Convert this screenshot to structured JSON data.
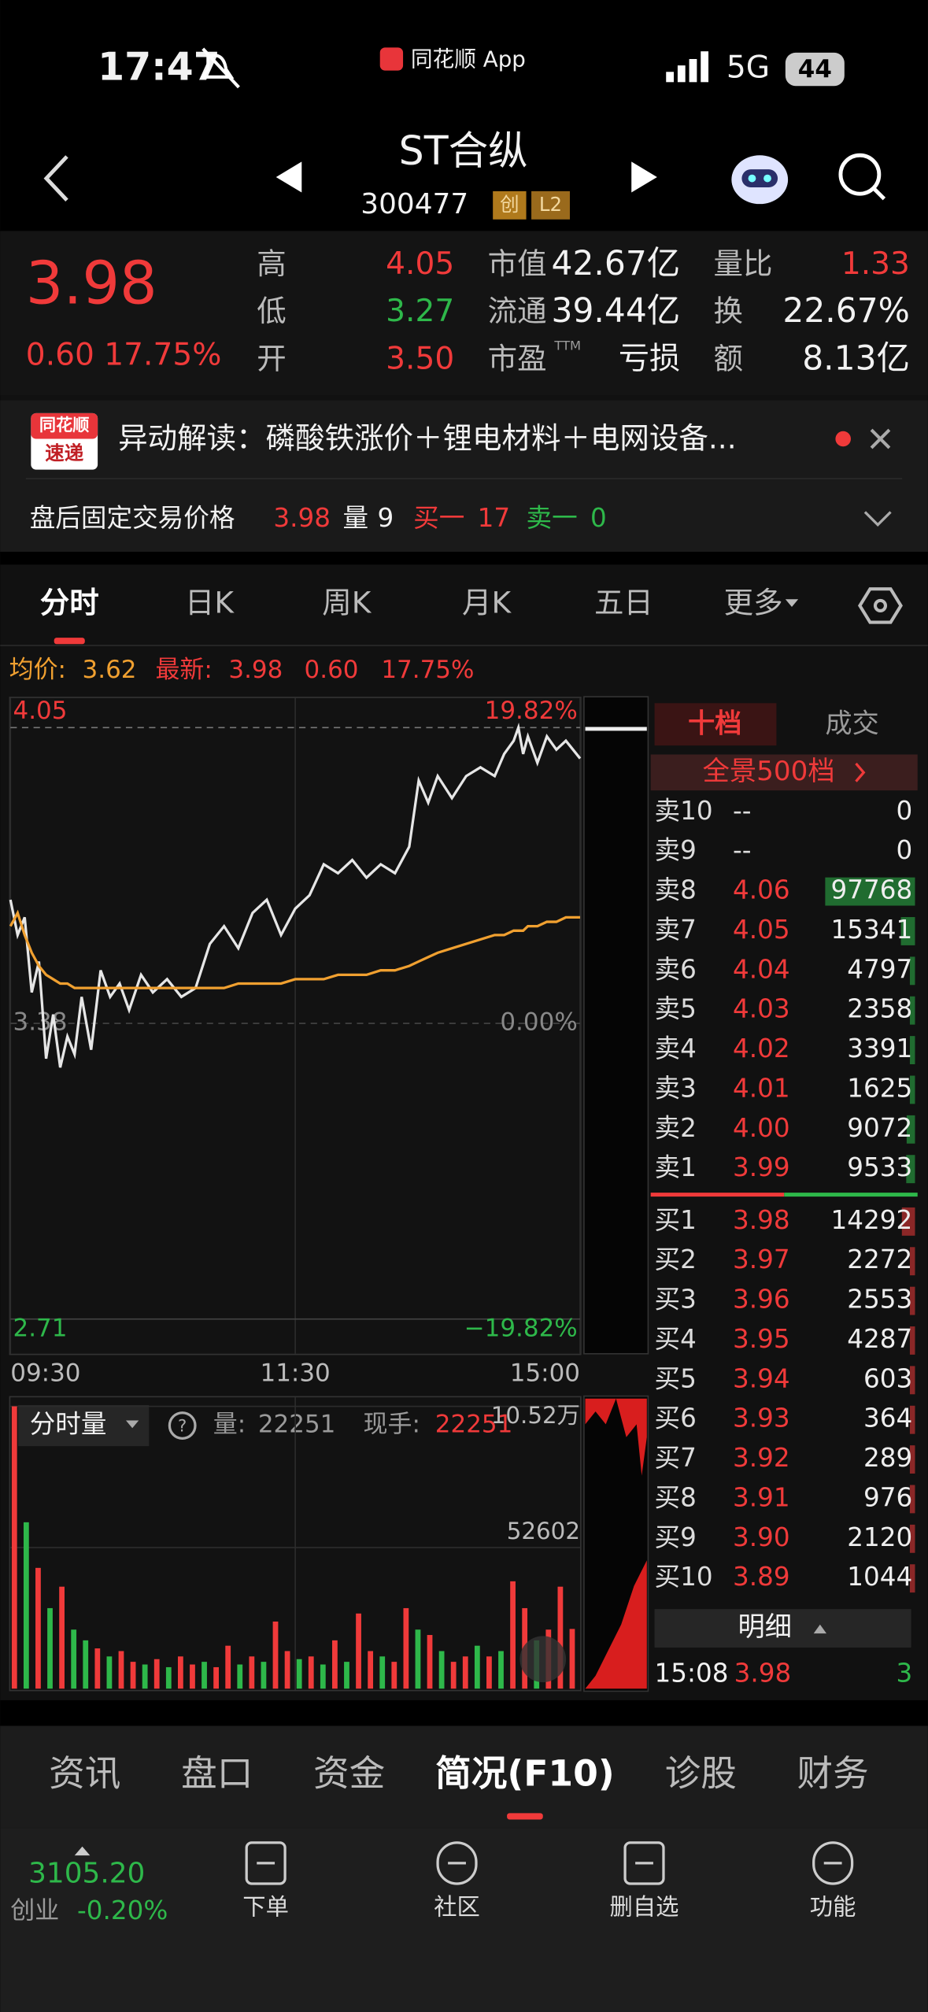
{
  "status_bar": {
    "time": "17:47",
    "app": "同花顺 App",
    "network": "5G",
    "battery": "44"
  },
  "nav": {
    "name": "ST合纵",
    "code": "300477",
    "tags": [
      "创",
      "L2"
    ]
  },
  "quote": {
    "price": "3.98",
    "change": "0.60",
    "change_pct": "17.75%",
    "fields": [
      {
        "label": "高",
        "value": "4.05",
        "color": "#f03a3a"
      },
      {
        "label": "市值",
        "value": "42.67亿",
        "color": "#f2f2f2"
      },
      {
        "label": "量比",
        "value": "1.33",
        "color": "#f03a3a"
      },
      {
        "label": "低",
        "value": "3.27",
        "color": "#2eb84a"
      },
      {
        "label": "流通",
        "value": "39.44亿",
        "color": "#f2f2f2"
      },
      {
        "label": "换",
        "value": "22.67%",
        "color": "#f2f2f2"
      },
      {
        "label": "开",
        "value": "3.50",
        "color": "#f03a3a"
      },
      {
        "label": "市盈",
        "value": "亏损",
        "color": "#f2f2f2"
      },
      {
        "label": "额",
        "value": "8.13亿",
        "color": "#f2f2f2"
      }
    ],
    "pe_sup": "TTM"
  },
  "news": {
    "badge": [
      "同花顺",
      "速递"
    ],
    "text": "异动解读：磷酸铁涨价＋锂电材料＋电网设备..."
  },
  "after_hours": {
    "label": "盘后固定交易价格",
    "price": "3.98",
    "volume_label": "量",
    "volume": "9",
    "buy_label": "买一",
    "buy": "17",
    "sell_label": "卖一",
    "sell": "0"
  },
  "tabs": {
    "items": [
      "分时",
      "日K",
      "周K",
      "月K",
      "五日",
      "更多"
    ],
    "active": 0
  },
  "chart_info": {
    "avg_label": "均价:",
    "avg": "3.62",
    "last_label": "最新:",
    "last": "3.98",
    "change": "0.60",
    "change_pct": "17.75%"
  },
  "chart_data": [
    {
      "type": "line",
      "x": [
        0,
        3,
        6,
        9,
        12,
        15,
        18,
        21,
        24,
        27,
        30,
        34,
        38,
        42,
        46,
        50,
        55,
        60,
        66,
        72,
        78,
        84,
        90,
        96,
        102,
        108,
        114,
        120,
        126,
        132,
        138,
        144,
        150,
        156,
        162,
        168,
        172,
        176,
        180,
        186,
        192,
        198,
        204,
        208,
        212,
        214,
        216,
        218,
        222,
        226,
        230,
        234,
        240
      ],
      "xlim": [
        0,
        240
      ],
      "xticks": [
        {
          "value": 0,
          "label": "09:30"
        },
        {
          "value": 120,
          "label": "11:30"
        },
        {
          "value": 240,
          "label": "15:00"
        }
      ],
      "ylim": [
        2.71,
        4.05
      ],
      "yticks": [
        4.05,
        3.38,
        2.71
      ],
      "y2lim": [
        -19.82,
        19.82
      ],
      "y2ticks": [
        {
          "value": 19.82,
          "label": "19.82%"
        },
        {
          "value": 0,
          "label": "0.00%"
        },
        {
          "value": -19.82,
          "label": "−19.82%"
        }
      ],
      "grid": true,
      "series": [
        {
          "color": "#e6e6e6",
          "values": [
            3.66,
            3.58,
            3.62,
            3.45,
            3.52,
            3.3,
            3.4,
            3.28,
            3.35,
            3.31,
            3.44,
            3.32,
            3.5,
            3.44,
            3.47,
            3.41,
            3.49,
            3.45,
            3.48,
            3.44,
            3.46,
            3.56,
            3.6,
            3.55,
            3.63,
            3.66,
            3.58,
            3.64,
            3.67,
            3.74,
            3.72,
            3.75,
            3.71,
            3.74,
            3.72,
            3.78,
            3.93,
            3.88,
            3.94,
            3.89,
            3.94,
            3.96,
            3.94,
            3.99,
            4.02,
            4.05,
            3.99,
            4.03,
            3.97,
            4.03,
            4.0,
            4.02,
            3.98
          ]
        },
        {
          "color": "#f0a030",
          "values": [
            3.6,
            3.63,
            3.58,
            3.54,
            3.51,
            3.49,
            3.48,
            3.47,
            3.47,
            3.46,
            3.46,
            3.46,
            3.46,
            3.46,
            3.46,
            3.46,
            3.46,
            3.46,
            3.46,
            3.46,
            3.46,
            3.46,
            3.46,
            3.47,
            3.47,
            3.47,
            3.47,
            3.48,
            3.48,
            3.48,
            3.49,
            3.49,
            3.49,
            3.5,
            3.5,
            3.51,
            3.52,
            3.53,
            3.54,
            3.55,
            3.56,
            3.57,
            3.58,
            3.58,
            3.59,
            3.59,
            3.59,
            3.6,
            3.6,
            3.61,
            3.61,
            3.62,
            3.62
          ]
        }
      ]
    },
    {
      "type": "bar",
      "x": [
        0,
        5,
        10,
        15,
        20,
        25,
        30,
        35,
        40,
        45,
        50,
        55,
        60,
        65,
        70,
        75,
        80,
        85,
        90,
        95,
        100,
        105,
        110,
        115,
        120,
        125,
        130,
        135,
        140,
        145,
        150,
        155,
        160,
        165,
        170,
        175,
        180,
        185,
        190,
        195,
        200,
        205,
        210,
        215,
        220,
        225,
        230,
        235
      ],
      "xlim": [
        0,
        240
      ],
      "values": [
        105200,
        62000,
        45000,
        30000,
        38000,
        22000,
        18000,
        15000,
        12000,
        14000,
        10000,
        9000,
        11000,
        8000,
        12000,
        9000,
        10000,
        8000,
        16000,
        9000,
        12000,
        10000,
        25000,
        14000,
        11000,
        12000,
        9000,
        18000,
        10000,
        28000,
        14000,
        12000,
        10000,
        30000,
        22000,
        20000,
        14000,
        10000,
        12000,
        16000,
        12000,
        14000,
        40000,
        30000,
        18000,
        22000,
        38000,
        22251
      ],
      "colors": [
        "#f03a3a",
        "#2eb84a",
        "#f03a3a",
        "#2eb84a",
        "#f03a3a",
        "#2eb84a",
        "#2eb84a",
        "#f03a3a",
        "#2eb84a",
        "#f03a3a",
        "#f03a3a",
        "#2eb84a",
        "#f03a3a",
        "#2eb84a",
        "#f03a3a",
        "#f03a3a",
        "#2eb84a",
        "#f03a3a",
        "#f03a3a",
        "#2eb84a",
        "#f03a3a",
        "#2eb84a",
        "#f03a3a",
        "#f03a3a",
        "#2eb84a",
        "#f03a3a",
        "#2eb84a",
        "#f03a3a",
        "#2eb84a",
        "#f03a3a",
        "#f03a3a",
        "#2eb84a",
        "#f03a3a",
        "#f03a3a",
        "#2eb84a",
        "#f03a3a",
        "#2eb84a",
        "#f03a3a",
        "#f03a3a",
        "#2eb84a",
        "#f03a3a",
        "#2eb84a",
        "#f03a3a",
        "#f03a3a",
        "#2eb84a",
        "#f03a3a",
        "#f03a3a",
        "#f03a3a"
      ],
      "ylim": [
        0,
        105200
      ],
      "yticks": [
        {
          "value": 105200,
          "label": "10.52万"
        },
        52602
      ]
    }
  ],
  "volume_info": {
    "label": "分时量",
    "volume_label": "量:",
    "volume": "22251",
    "current_label": "现手:",
    "current": "22251"
  },
  "order_book": {
    "tabs": [
      "十档",
      "成交"
    ],
    "panorama": "全景500档",
    "asks": [
      {
        "label": "卖10",
        "price": "--",
        "volume": 0
      },
      {
        "label": "卖9",
        "price": "--",
        "volume": 0
      },
      {
        "label": "卖8",
        "price": "4.06",
        "volume": 97768
      },
      {
        "label": "卖7",
        "price": "4.05",
        "volume": 15341
      },
      {
        "label": "卖6",
        "price": "4.04",
        "volume": 4797
      },
      {
        "label": "卖5",
        "price": "4.03",
        "volume": 2358
      },
      {
        "label": "卖4",
        "price": "4.02",
        "volume": 3391
      },
      {
        "label": "卖3",
        "price": "4.01",
        "volume": 1625
      },
      {
        "label": "卖2",
        "price": "4.00",
        "volume": 9072
      },
      {
        "label": "卖1",
        "price": "3.99",
        "volume": 9533
      }
    ],
    "bids": [
      {
        "label": "买1",
        "price": "3.98",
        "volume": 14292
      },
      {
        "label": "买2",
        "price": "3.97",
        "volume": 2272
      },
      {
        "label": "买3",
        "price": "3.96",
        "volume": 2553
      },
      {
        "label": "买4",
        "price": "3.95",
        "volume": 4287
      },
      {
        "label": "买5",
        "price": "3.94",
        "volume": 603
      },
      {
        "label": "买6",
        "price": "3.93",
        "volume": 364
      },
      {
        "label": "买7",
        "price": "3.92",
        "volume": 289
      },
      {
        "label": "买8",
        "price": "3.91",
        "volume": 976
      },
      {
        "label": "买9",
        "price": "3.90",
        "volume": 2120
      },
      {
        "label": "买10",
        "price": "3.89",
        "volume": 1044
      }
    ],
    "detail_label": "明细",
    "trade": {
      "time": "15:08",
      "price": "3.98",
      "volume": "3"
    }
  },
  "bottom_tabs": {
    "items": [
      "资讯",
      "盘口",
      "资金",
      "简况(F10)",
      "诊股",
      "财务"
    ],
    "active": 3
  },
  "footer": {
    "index_value": "3105.20",
    "index_name": "创业",
    "index_change": "-0.20%",
    "buttons": [
      "下单",
      "社区",
      "删自选",
      "功能"
    ]
  }
}
